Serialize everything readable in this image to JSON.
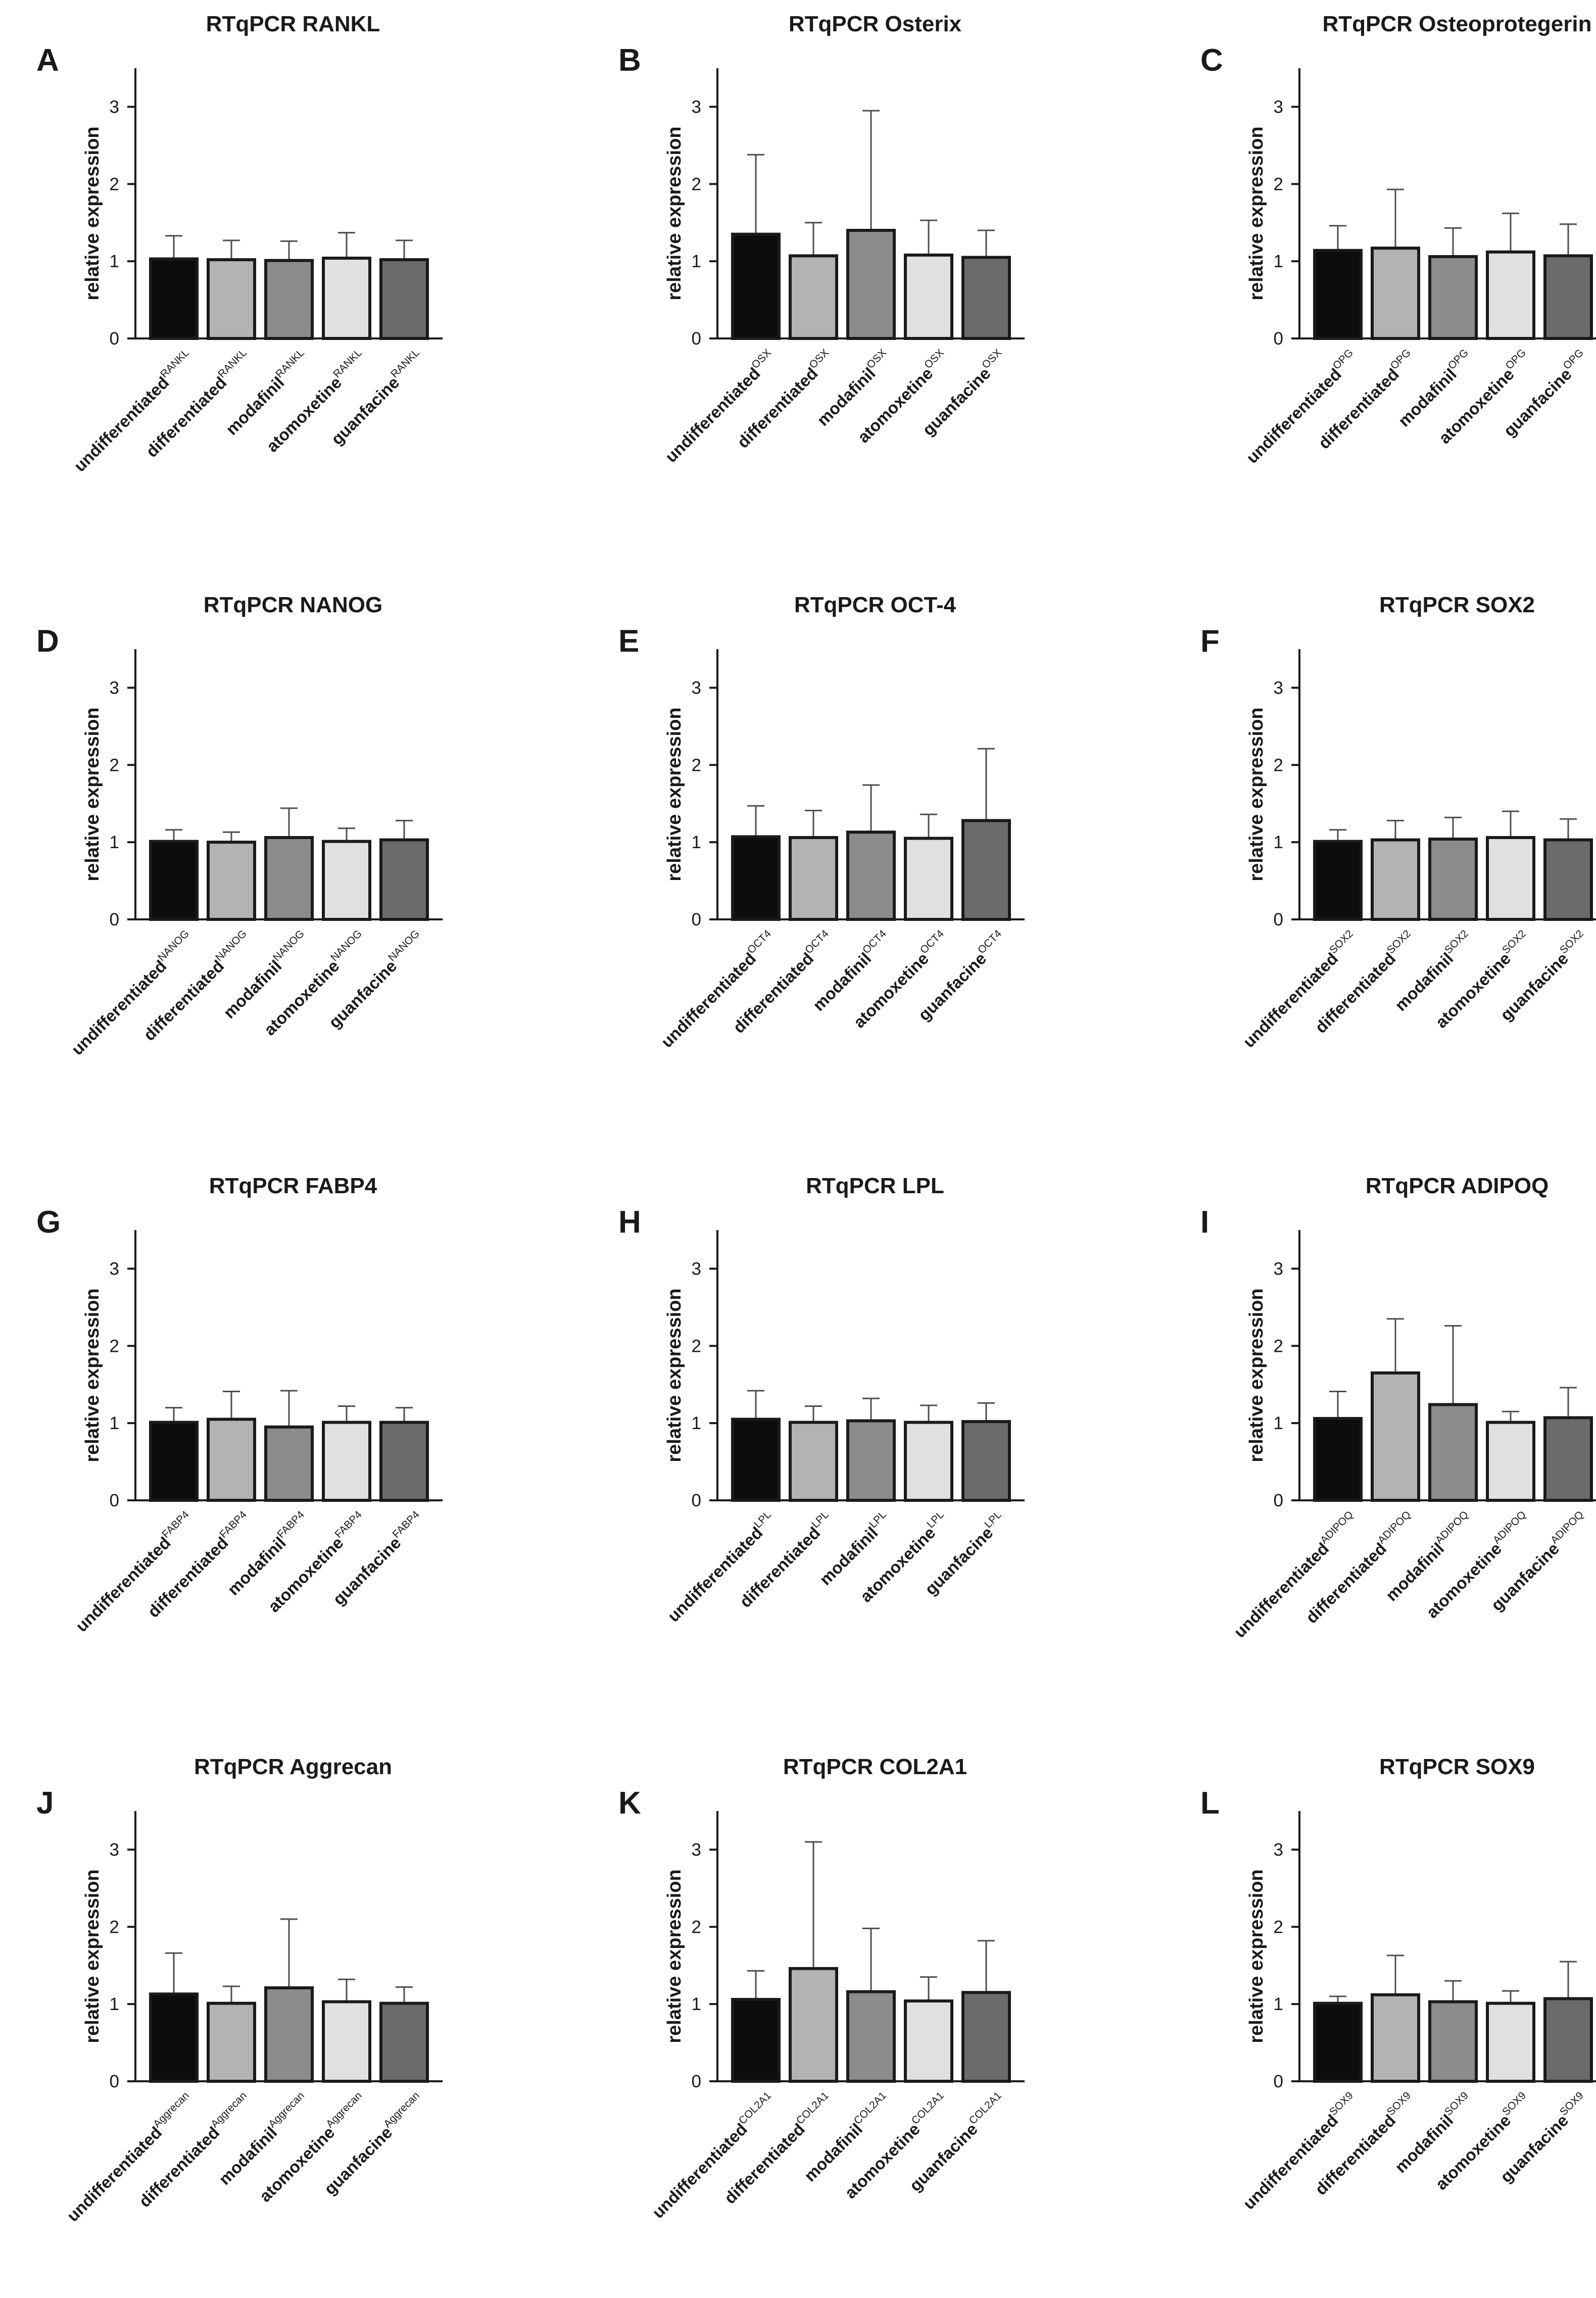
{
  "figure": {
    "category_names": [
      "undifferentiated",
      "differentiated",
      "modafinil",
      "atomoxetine",
      "guanfacine"
    ],
    "bar_colors": [
      "#0d0d0d",
      "#b3b3b3",
      "#8c8c8c",
      "#e0e0e0",
      "#6b6b6b"
    ],
    "edge_color": "#1a1a1a"
  },
  "chart_data": [
    {
      "letter": "A",
      "type": "bar",
      "title": "RTqPCR RANKL",
      "ylabel": "relative expression",
      "yticks": [
        "0",
        "1",
        "2",
        "3"
      ],
      "ylim": [
        0,
        3.5
      ],
      "superscript": "RANKL",
      "values": [
        1.03,
        1.02,
        1.01,
        1.04,
        1.02
      ],
      "errors": [
        0.3,
        0.25,
        0.25,
        0.33,
        0.25
      ]
    },
    {
      "letter": "B",
      "type": "bar",
      "title": "RTqPCR Osterix",
      "ylabel": "relative expression",
      "yticks": [
        "0",
        "1",
        "2",
        "3"
      ],
      "ylim": [
        0,
        3.5
      ],
      "superscript": "OSX",
      "values": [
        1.35,
        1.07,
        1.4,
        1.08,
        1.05
      ],
      "errors": [
        1.03,
        0.43,
        1.55,
        0.45,
        0.35
      ]
    },
    {
      "letter": "C",
      "type": "bar",
      "title": "RTqPCR Osteoprotegerin",
      "ylabel": "relative expression",
      "yticks": [
        "0",
        "1",
        "2",
        "3"
      ],
      "ylim": [
        0,
        3.5
      ],
      "superscript": "OPG",
      "values": [
        1.14,
        1.17,
        1.06,
        1.12,
        1.07
      ],
      "errors": [
        0.32,
        0.76,
        0.37,
        0.5,
        0.41
      ]
    },
    {
      "letter": "D",
      "type": "bar",
      "title": "RTqPCR NANOG",
      "ylabel": "relative expression",
      "yticks": [
        "0",
        "1",
        "2",
        "3"
      ],
      "ylim": [
        0,
        3.5
      ],
      "superscript": "NANOG",
      "values": [
        1.01,
        1.0,
        1.06,
        1.01,
        1.03
      ],
      "errors": [
        0.15,
        0.13,
        0.38,
        0.17,
        0.25
      ]
    },
    {
      "letter": "E",
      "type": "bar",
      "title": "RTqPCR OCT-4",
      "ylabel": "relative expression",
      "yticks": [
        "0",
        "1",
        "2",
        "3"
      ],
      "ylim": [
        0,
        3.5
      ],
      "superscript": "OCT4",
      "values": [
        1.07,
        1.06,
        1.13,
        1.05,
        1.28
      ],
      "errors": [
        0.4,
        0.35,
        0.61,
        0.31,
        0.93
      ]
    },
    {
      "letter": "F",
      "type": "bar",
      "title": "RTqPCR SOX2",
      "ylabel": "relative expression",
      "yticks": [
        "0",
        "1",
        "2",
        "3"
      ],
      "ylim": [
        0,
        3.5
      ],
      "superscript": "SOX2",
      "values": [
        1.01,
        1.03,
        1.04,
        1.06,
        1.03
      ],
      "errors": [
        0.15,
        0.25,
        0.28,
        0.34,
        0.27
      ]
    },
    {
      "letter": "G",
      "type": "bar",
      "title": "RTqPCR FABP4",
      "ylabel": "relative expression",
      "yticks": [
        "0",
        "1",
        "2",
        "3"
      ],
      "ylim": [
        0,
        3.5
      ],
      "superscript": "FABP4",
      "values": [
        1.01,
        1.05,
        0.95,
        1.01,
        1.01
      ],
      "errors": [
        0.19,
        0.36,
        0.47,
        0.21,
        0.19
      ]
    },
    {
      "letter": "H",
      "type": "bar",
      "title": "RTqPCR LPL",
      "ylabel": "relative expression",
      "yticks": [
        "0",
        "1",
        "2",
        "3"
      ],
      "ylim": [
        0,
        3.5
      ],
      "superscript": "LPL",
      "values": [
        1.05,
        1.01,
        1.03,
        1.01,
        1.02
      ],
      "errors": [
        0.37,
        0.21,
        0.29,
        0.22,
        0.24
      ]
    },
    {
      "letter": "I",
      "type": "bar",
      "title": "RTqPCR ADIPOQ",
      "ylabel": "relative expression",
      "yticks": [
        "0",
        "1",
        "2",
        "3"
      ],
      "ylim": [
        0,
        3.5
      ],
      "superscript": "ADIPOQ",
      "values": [
        1.06,
        1.65,
        1.24,
        1.01,
        1.07
      ],
      "errors": [
        0.35,
        0.7,
        1.02,
        0.14,
        0.39
      ]
    },
    {
      "letter": "J",
      "type": "bar",
      "title": "RTqPCR Aggrecan",
      "ylabel": "relative expression",
      "yticks": [
        "0",
        "1",
        "2",
        "3"
      ],
      "ylim": [
        0,
        3.5
      ],
      "superscript": "Aggrecan",
      "values": [
        1.13,
        1.01,
        1.21,
        1.03,
        1.01
      ],
      "errors": [
        0.53,
        0.22,
        0.89,
        0.29,
        0.21
      ]
    },
    {
      "letter": "K",
      "type": "bar",
      "title": "RTqPCR COL2A1",
      "ylabel": "relative expression",
      "yticks": [
        "0",
        "1",
        "2",
        "3"
      ],
      "ylim": [
        0,
        3.5
      ],
      "superscript": "COL2A1",
      "values": [
        1.06,
        1.46,
        1.16,
        1.04,
        1.15
      ],
      "errors": [
        0.37,
        1.64,
        0.82,
        0.31,
        0.67
      ]
    },
    {
      "letter": "L",
      "type": "bar",
      "title": "RTqPCR SOX9",
      "ylabel": "relative expression",
      "yticks": [
        "0",
        "1",
        "2",
        "3"
      ],
      "ylim": [
        0,
        3.5
      ],
      "superscript": "SOX9",
      "values": [
        1.01,
        1.12,
        1.03,
        1.01,
        1.07
      ],
      "errors": [
        0.09,
        0.51,
        0.27,
        0.16,
        0.48
      ]
    }
  ]
}
